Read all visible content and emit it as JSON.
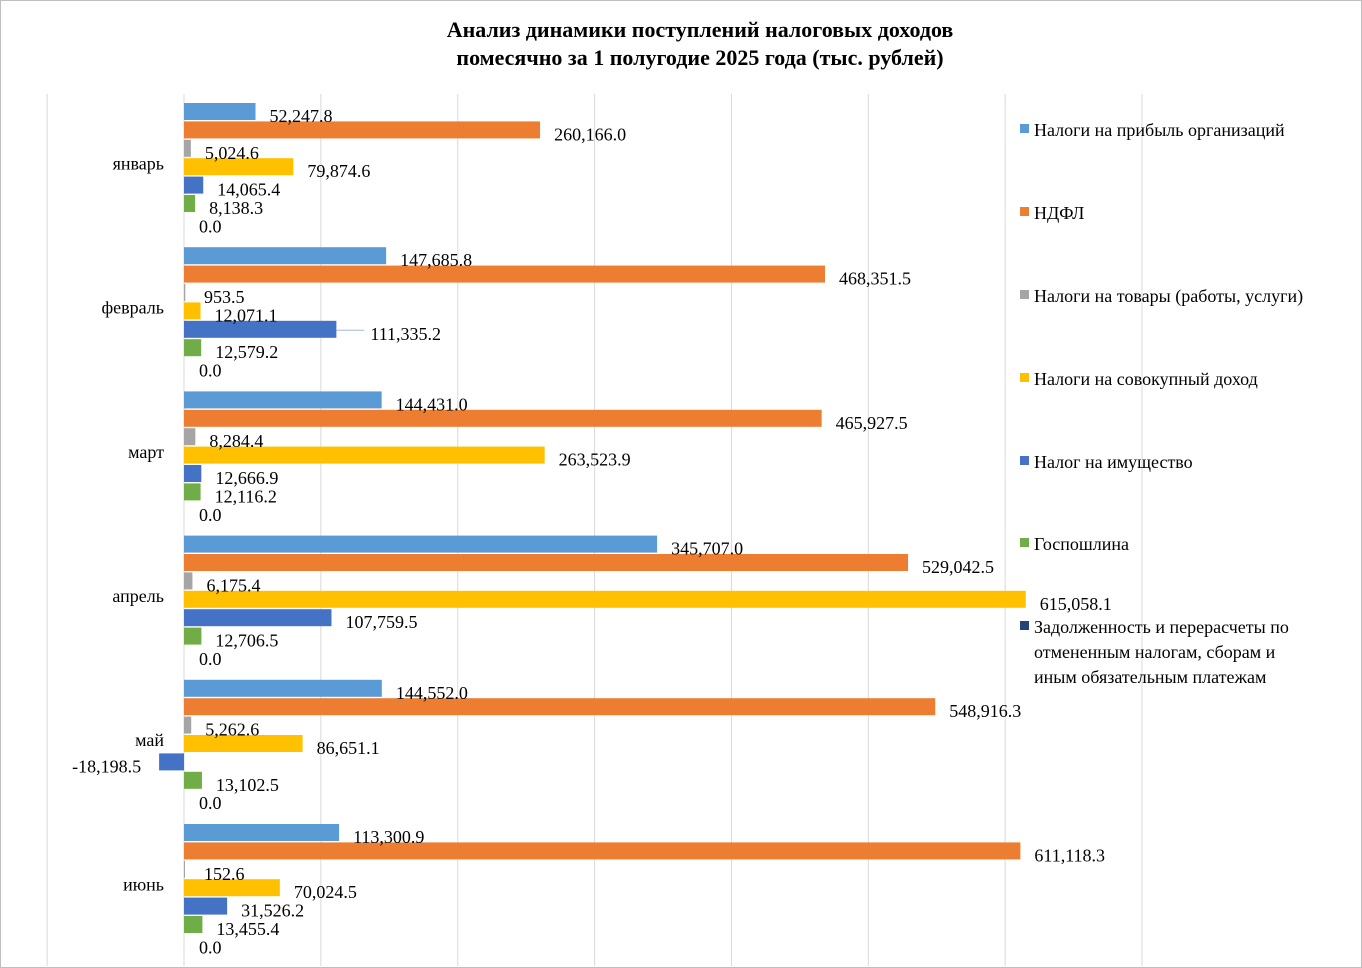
{
  "chart_data": {
    "type": "bar",
    "orientation": "horizontal",
    "title_lines": [
      "Анализ динамики поступлений налоговых доходов",
      "помесячно за 1 полугодие 2025 года (тыс. рублей)"
    ],
    "categories": [
      "январь",
      "февраль",
      "март",
      "апрель",
      "май",
      "июнь"
    ],
    "series": [
      {
        "name": "Налоги на прибыль организаций",
        "color": "#5B9BD5",
        "values": [
          52247.8,
          147685.8,
          144431.0,
          345707.0,
          144552.0,
          113300.9
        ],
        "labels": [
          "52,247.8",
          "147,685.8",
          "144,431.0",
          "345,707.0",
          "144,552.0",
          "113,300.9"
        ]
      },
      {
        "name": "НДФЛ",
        "color": "#ED7D31",
        "values": [
          260166.0,
          468351.5,
          465927.5,
          529042.5,
          548916.3,
          611118.3
        ],
        "labels": [
          "260,166.0",
          "468,351.5",
          "465,927.5",
          "529,042.5",
          "548,916.3",
          "611,118.3"
        ]
      },
      {
        "name": "Налоги на товары (работы, услуги)",
        "color": "#A5A5A5",
        "values": [
          5024.6,
          953.5,
          8284.4,
          6175.4,
          5262.6,
          152.6
        ],
        "labels": [
          "5,024.6",
          "953.5",
          "8,284.4",
          "6,175.4",
          "5,262.6",
          "152.6"
        ]
      },
      {
        "name": "Налоги на совокупный доход",
        "color": "#FFC000",
        "values": [
          79874.6,
          12071.1,
          263523.9,
          615058.1,
          86651.1,
          70024.5
        ],
        "labels": [
          "79,874.6",
          "12,071.1",
          "263,523.9",
          "615,058.1",
          "86,651.1",
          "70,024.5"
        ]
      },
      {
        "name": "Налог на имущество",
        "color": "#4472C4",
        "values": [
          14065.4,
          111335.2,
          12666.9,
          107759.5,
          -18198.5,
          31526.2
        ],
        "labels": [
          "14,065.4",
          "111,335.2",
          "12,666.9",
          "107,759.5",
          "-18,198.5",
          "31,526.2"
        ]
      },
      {
        "name": "Госпошлина",
        "color": "#70AD47",
        "values": [
          8138.3,
          12579.2,
          12116.2,
          12706.5,
          13102.5,
          13455.4
        ],
        "labels": [
          "8,138.3",
          "12,579.2",
          "12,116.2",
          "12,706.5",
          "13,102.5",
          "13,455.4"
        ]
      },
      {
        "name_lines": [
          "Задолженность и перерасчеты по",
          "отмененным налогам, сборам и",
          "иным обязательным платежам"
        ],
        "color": "#264478",
        "values": [
          0,
          0,
          0,
          0,
          0,
          0
        ],
        "labels": [
          "0.0",
          "0.0",
          "0.0",
          "0.0",
          "0.0",
          "0.0"
        ]
      }
    ],
    "xlim": [
      -100000,
      700000
    ],
    "grid": true,
    "legend_position": "right"
  }
}
